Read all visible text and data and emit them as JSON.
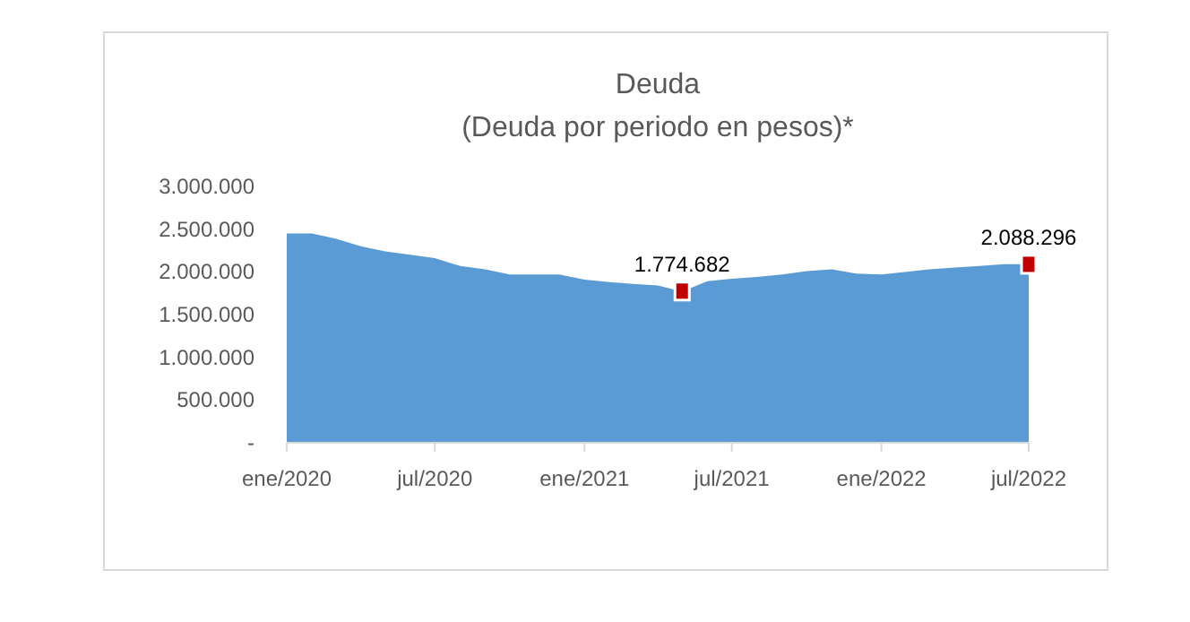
{
  "chart_data": {
    "type": "area",
    "title": "Deuda",
    "subtitle": "(Deuda por periodo en pesos)*",
    "x": [
      "2020-01",
      "2020-02",
      "2020-03",
      "2020-04",
      "2020-05",
      "2020-06",
      "2020-07",
      "2020-08",
      "2020-09",
      "2020-10",
      "2020-11",
      "2020-12",
      "2021-01",
      "2021-02",
      "2021-03",
      "2021-04",
      "2021-05",
      "2021-06",
      "2021-07",
      "2021-08",
      "2021-09",
      "2021-10",
      "2021-11",
      "2021-12",
      "2022-01",
      "2022-02",
      "2022-03",
      "2022-04",
      "2022-05",
      "2022-06",
      "2022-07"
    ],
    "series": [
      {
        "color": "#5b9bd5",
        "values": [
          2450000,
          2450000,
          2390000,
          2300000,
          2240000,
          2200000,
          2160000,
          2070000,
          2030000,
          1970000,
          1970000,
          1970000,
          1910000,
          1880000,
          1860000,
          1840000,
          1770000,
          1890000,
          1920000,
          1940000,
          1970000,
          2010000,
          2030000,
          1980000,
          1970000,
          2000000,
          2030000,
          2050000,
          2070000,
          2090000,
          2090000
        ]
      },
      {
        "type": "scatter",
        "color": "#c00000",
        "marker": "square",
        "x": [
          "2021-05",
          "2022-07"
        ],
        "values": [
          1774682,
          2088296
        ],
        "value_labels": [
          "1.774.682",
          "2.088.296"
        ]
      }
    ],
    "xlim": [
      "2020-01",
      "2022-07"
    ],
    "xticks": [
      {
        "value": "2020-01",
        "label": "ene/2020"
      },
      {
        "value": "2020-07",
        "label": "jul/2020"
      },
      {
        "value": "2021-01",
        "label": "ene/2021"
      },
      {
        "value": "2021-07",
        "label": "jul/2021"
      },
      {
        "value": "2022-01",
        "label": "ene/2022"
      },
      {
        "value": "2022-07",
        "label": "jul/2022"
      }
    ],
    "ylim": [
      0,
      3000000
    ],
    "yticks": [
      {
        "value": 0,
        "label": "-"
      },
      {
        "value": 500000,
        "label": "500.000"
      },
      {
        "value": 1000000,
        "label": "1.000.000"
      },
      {
        "value": 1500000,
        "label": "1.500.000"
      },
      {
        "value": 2000000,
        "label": "2.000.000"
      },
      {
        "value": 2500000,
        "label": "2.500.000"
      },
      {
        "value": 3000000,
        "label": "3.000.000"
      }
    ],
    "grid": false
  }
}
